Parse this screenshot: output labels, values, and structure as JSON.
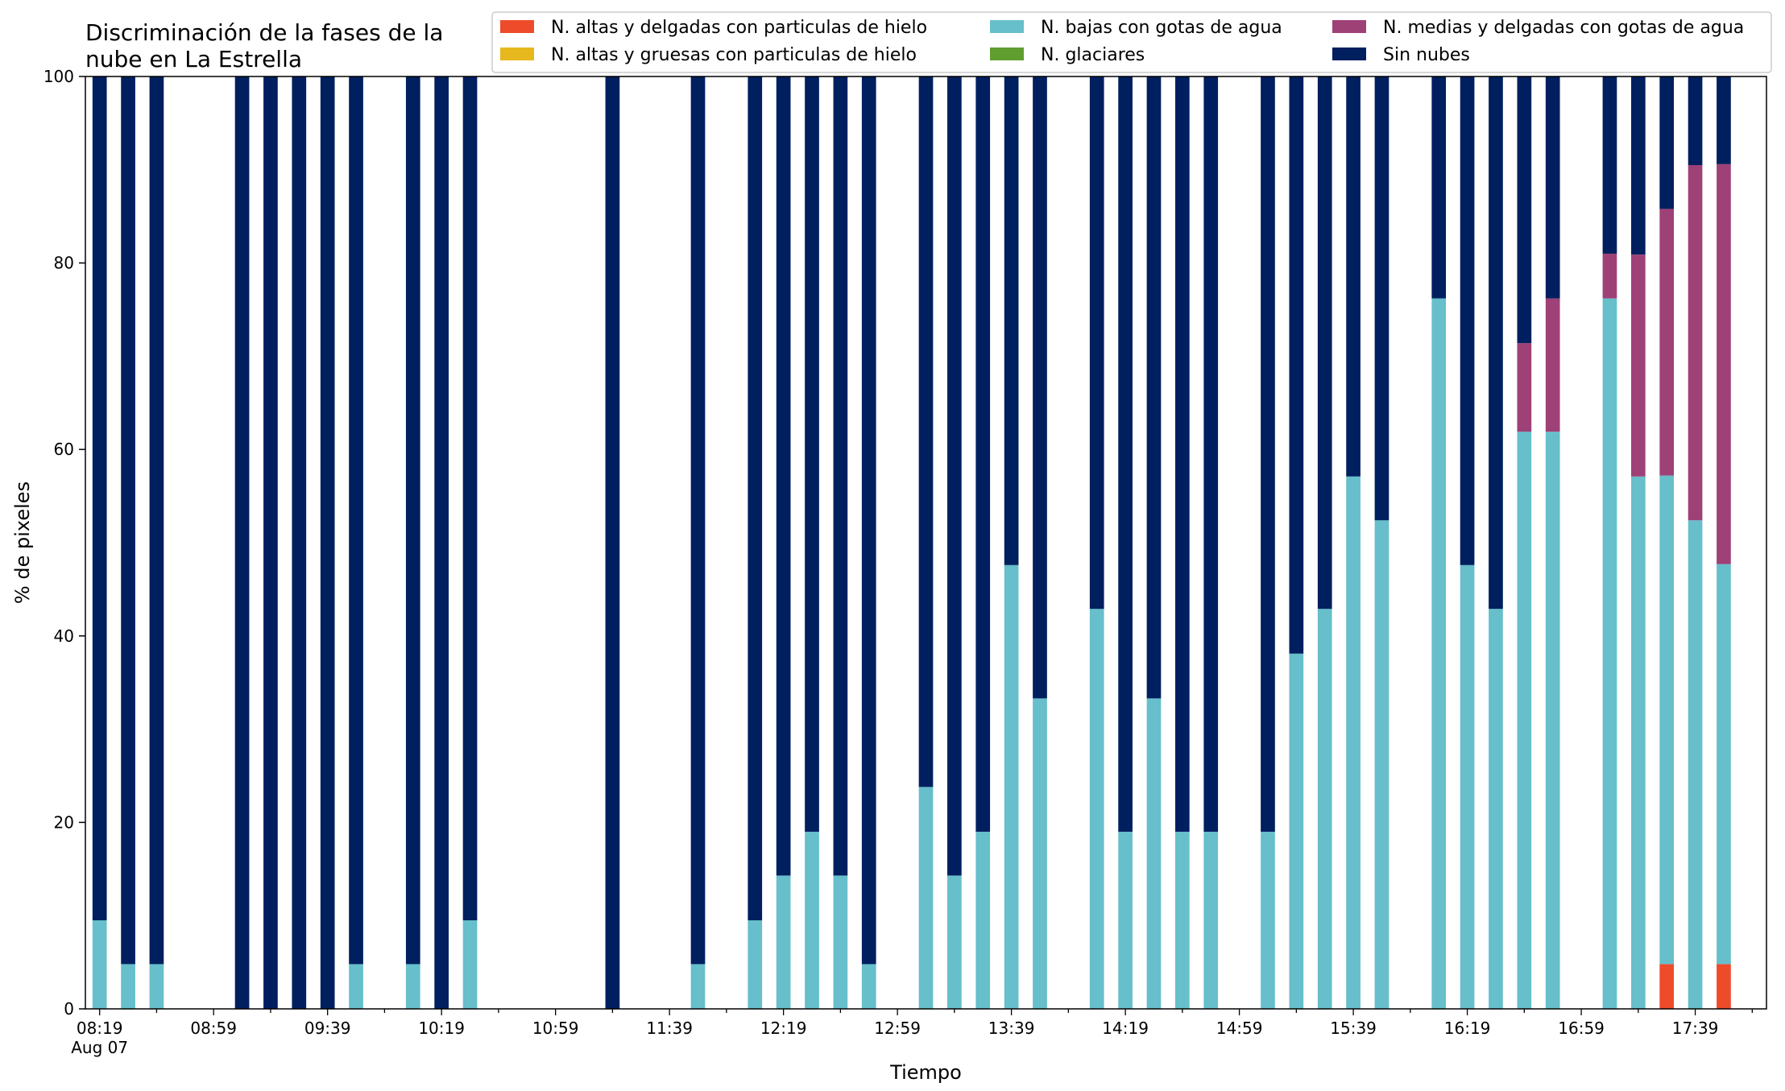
{
  "chart_data": {
    "type": "bar",
    "stacked": true,
    "title": "Discriminación de la fases de la nube en La Estrella",
    "title_lines": [
      "Discriminación de la fases de la",
      "nube en La Estrella"
    ],
    "xlabel": "Tiempo",
    "ylabel": "% de pixeles",
    "ylim": [
      0,
      100
    ],
    "yticks": [
      0,
      20,
      40,
      60,
      80,
      100
    ],
    "xlim": [
      "08:14",
      "18:04"
    ],
    "x_tick_labels": [
      "08:19",
      "08:59",
      "09:39",
      "10:19",
      "10:59",
      "11:39",
      "12:19",
      "12:59",
      "13:39",
      "14:19",
      "14:59",
      "15:39",
      "16:19",
      "16:59",
      "17:39"
    ],
    "x_date_label": "Aug 07",
    "grid": false,
    "legend_position": "top",
    "legend_order": [
      0,
      1,
      2,
      3,
      4,
      5
    ],
    "series": [
      {
        "name": "N. altas y delgadas con particulas de hielo",
        "color": "#ee4b2b"
      },
      {
        "name": "N. altas y gruesas con particulas de hielo",
        "color": "#e6b81e"
      },
      {
        "name": "N. bajas con gotas de agua",
        "color": "#66bfcb"
      },
      {
        "name": "N. glaciares",
        "color": "#5f9e2f"
      },
      {
        "name": "N. medias y delgadas con gotas de agua",
        "color": "#9e4177"
      },
      {
        "name": "Sin nubes",
        "color": "#001f5f"
      }
    ],
    "data": [
      {
        "time": "08:19",
        "values": [
          0,
          0,
          9.5,
          0,
          0,
          90.5
        ]
      },
      {
        "time": "08:29",
        "values": [
          0,
          0,
          4.8,
          0,
          0,
          95.2
        ]
      },
      {
        "time": "08:39",
        "values": [
          0,
          0,
          4.8,
          0,
          0,
          95.2
        ]
      },
      {
        "time": "09:09",
        "values": [
          0,
          0,
          0,
          0,
          0,
          100
        ]
      },
      {
        "time": "09:19",
        "values": [
          0,
          0,
          0,
          0,
          0,
          100
        ]
      },
      {
        "time": "09:29",
        "values": [
          0,
          0,
          0,
          0,
          0,
          100
        ]
      },
      {
        "time": "09:39",
        "values": [
          0,
          0,
          0,
          0,
          0,
          100
        ]
      },
      {
        "time": "09:49",
        "values": [
          0,
          0,
          4.8,
          0,
          0,
          95.2
        ]
      },
      {
        "time": "10:09",
        "values": [
          0,
          0,
          4.8,
          0,
          0,
          95.2
        ]
      },
      {
        "time": "10:19",
        "values": [
          0,
          0,
          0,
          0,
          0,
          100
        ]
      },
      {
        "time": "10:29",
        "values": [
          0,
          0,
          9.5,
          0,
          0,
          90.5
        ]
      },
      {
        "time": "11:19",
        "values": [
          0,
          0,
          0,
          0,
          0,
          100
        ]
      },
      {
        "time": "11:49",
        "values": [
          0,
          0,
          4.8,
          0,
          0,
          95.2
        ]
      },
      {
        "time": "12:09",
        "values": [
          0,
          0,
          9.5,
          0,
          0,
          90.5
        ]
      },
      {
        "time": "12:19",
        "values": [
          0,
          0,
          14.3,
          0,
          0,
          85.7
        ]
      },
      {
        "time": "12:29",
        "values": [
          0,
          0,
          19,
          0,
          0,
          81
        ]
      },
      {
        "time": "12:39",
        "values": [
          0,
          0,
          14.3,
          0,
          0,
          85.7
        ]
      },
      {
        "time": "12:49",
        "values": [
          0,
          0,
          4.8,
          0,
          0,
          95.2
        ]
      },
      {
        "time": "13:09",
        "values": [
          0,
          0,
          23.8,
          0,
          0,
          76.2
        ]
      },
      {
        "time": "13:19",
        "values": [
          0,
          0,
          14.3,
          0,
          0,
          85.7
        ]
      },
      {
        "time": "13:29",
        "values": [
          0,
          0,
          19,
          0,
          0,
          81
        ]
      },
      {
        "time": "13:39",
        "values": [
          0,
          0,
          47.6,
          0,
          0,
          52.4
        ]
      },
      {
        "time": "13:49",
        "values": [
          0,
          0,
          33.3,
          0,
          0,
          66.7
        ]
      },
      {
        "time": "14:09",
        "values": [
          0,
          0,
          42.9,
          0,
          0,
          57.1
        ]
      },
      {
        "time": "14:19",
        "values": [
          0,
          0,
          19,
          0,
          0,
          81
        ]
      },
      {
        "time": "14:29",
        "values": [
          0,
          0,
          33.3,
          0,
          0,
          66.7
        ]
      },
      {
        "time": "14:39",
        "values": [
          0,
          0,
          19,
          0,
          0,
          81
        ]
      },
      {
        "time": "14:49",
        "values": [
          0,
          0,
          19,
          0,
          0,
          81
        ]
      },
      {
        "time": "15:09",
        "values": [
          0,
          0,
          19,
          0,
          0,
          81
        ]
      },
      {
        "time": "15:19",
        "values": [
          0,
          0,
          38.1,
          0,
          0,
          61.9
        ]
      },
      {
        "time": "15:29",
        "values": [
          0,
          0,
          42.9,
          0,
          0,
          57.1
        ]
      },
      {
        "time": "15:39",
        "values": [
          0,
          0,
          57.1,
          0,
          0,
          42.9
        ]
      },
      {
        "time": "15:49",
        "values": [
          0,
          0,
          52.4,
          0,
          0,
          47.6
        ]
      },
      {
        "time": "16:09",
        "values": [
          0,
          0,
          76.2,
          0,
          0,
          23.8
        ]
      },
      {
        "time": "16:19",
        "values": [
          0,
          0,
          47.6,
          0,
          0,
          52.4
        ]
      },
      {
        "time": "16:29",
        "values": [
          0,
          0,
          42.9,
          0,
          0,
          57.1
        ]
      },
      {
        "time": "16:39",
        "values": [
          0,
          0,
          61.9,
          0,
          9.5,
          28.6
        ]
      },
      {
        "time": "16:49",
        "values": [
          0,
          0,
          61.9,
          0,
          14.3,
          23.8
        ]
      },
      {
        "time": "17:09",
        "values": [
          0,
          0,
          76.2,
          0,
          4.8,
          19
        ]
      },
      {
        "time": "17:19",
        "values": [
          0,
          0,
          57.1,
          0,
          23.8,
          19.1
        ]
      },
      {
        "time": "17:29",
        "values": [
          4.8,
          0,
          52.4,
          0,
          28.6,
          14.2
        ]
      },
      {
        "time": "17:39",
        "values": [
          0,
          0,
          52.4,
          0,
          38.1,
          9.5
        ]
      },
      {
        "time": "17:49",
        "values": [
          4.8,
          0,
          42.9,
          0,
          42.9,
          9.4
        ]
      }
    ]
  }
}
